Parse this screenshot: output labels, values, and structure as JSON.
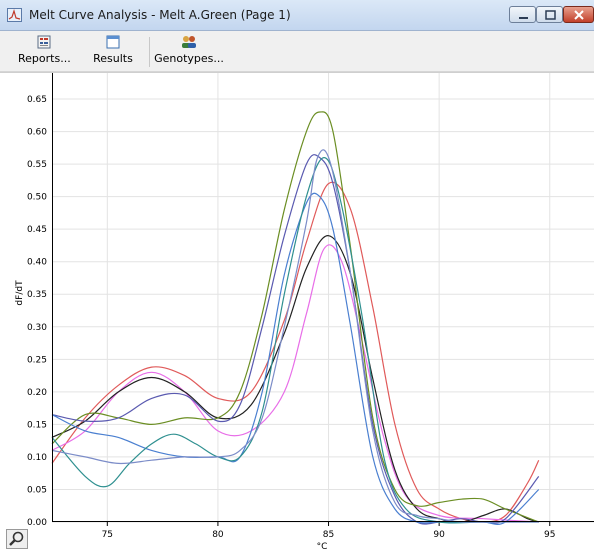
{
  "window": {
    "title": "Melt Curve Analysis - Melt A.Green (Page 1)",
    "icon": "melt-curve-app-icon",
    "controls": [
      "minimize-icon",
      "maximize-icon",
      "close-icon"
    ]
  },
  "toolbar": {
    "reports_label": "Reports...",
    "results_label": "Results",
    "genotypes_label": "Genotypes..."
  },
  "chart_data": {
    "type": "line",
    "title": "",
    "xlabel": "°C",
    "ylabel": "dF/dT",
    "xlim": [
      72.5,
      97
    ],
    "ylim": [
      0,
      0.69
    ],
    "x_ticks": [
      75,
      80,
      85,
      90,
      95
    ],
    "x_tick_labels": [
      "75",
      "80",
      "85",
      "90",
      "95"
    ],
    "y_ticks": [
      0,
      0.05,
      0.1,
      0.15,
      0.2,
      0.25,
      0.3,
      0.35,
      0.4,
      0.45,
      0.5,
      0.55,
      0.6,
      0.65
    ],
    "y_tick_labels": [
      "0.00",
      "0.05",
      "0.10",
      "0.15",
      "0.20",
      "0.25",
      "0.30",
      "0.35",
      "0.40",
      "0.45",
      "0.50",
      "0.55",
      "0.60",
      "0.65"
    ],
    "grid": true,
    "series": [
      {
        "color": "#e05a5a",
        "x": [
          72.5,
          74,
          75.5,
          77,
          78.5,
          80,
          81.5,
          83,
          84,
          85,
          86,
          87,
          88,
          89,
          90,
          91,
          92,
          93,
          94,
          94.5
        ],
        "y": [
          0.09,
          0.16,
          0.21,
          0.238,
          0.225,
          0.19,
          0.2,
          0.31,
          0.43,
          0.52,
          0.48,
          0.33,
          0.15,
          0.05,
          0.02,
          0.005,
          0.0,
          0.01,
          0.06,
          0.095
        ]
      },
      {
        "color": "#e86ee8",
        "x": [
          72.5,
          74,
          75.5,
          77,
          78.5,
          80,
          81.5,
          83,
          84,
          84.8,
          85.6,
          86.5,
          87.5,
          88.5,
          90,
          92,
          94.5
        ],
        "y": [
          0.11,
          0.14,
          0.2,
          0.23,
          0.2,
          0.14,
          0.14,
          0.2,
          0.32,
          0.42,
          0.4,
          0.28,
          0.13,
          0.04,
          0.01,
          0.005,
          0.0
        ]
      },
      {
        "color": "#222222",
        "x": [
          72.5,
          74,
          75.5,
          77,
          78.5,
          80,
          81.5,
          83,
          84,
          85,
          86,
          87,
          88,
          89,
          90,
          91,
          92,
          93,
          94,
          94.5
        ],
        "y": [
          0.13,
          0.155,
          0.2,
          0.222,
          0.2,
          0.16,
          0.18,
          0.29,
          0.39,
          0.44,
          0.38,
          0.22,
          0.08,
          0.02,
          0.005,
          0.0,
          0.01,
          0.02,
          0.005,
          0.0
        ]
      },
      {
        "color": "#6b8e23",
        "x": [
          72.5,
          74,
          75.5,
          77,
          78.5,
          80,
          81,
          82,
          83,
          84,
          84.6,
          85.2,
          86,
          87,
          88,
          89,
          90,
          91,
          92,
          93,
          94.5
        ],
        "y": [
          0.12,
          0.165,
          0.16,
          0.15,
          0.16,
          0.16,
          0.2,
          0.32,
          0.48,
          0.6,
          0.63,
          0.6,
          0.42,
          0.16,
          0.05,
          0.025,
          0.03,
          0.035,
          0.035,
          0.02,
          0.0
        ]
      },
      {
        "color": "#5a5ab0",
        "x": [
          72.5,
          74,
          75.5,
          77,
          78.5,
          80,
          81,
          82,
          83,
          84,
          84.6,
          85.2,
          86,
          87,
          88,
          89,
          90,
          91,
          92,
          93,
          94.5
        ],
        "y": [
          0.165,
          0.155,
          0.16,
          0.19,
          0.195,
          0.155,
          0.18,
          0.3,
          0.44,
          0.55,
          0.56,
          0.52,
          0.38,
          0.15,
          0.04,
          0.0,
          0.0,
          0.005,
          0.0,
          0.005,
          0.07
        ]
      },
      {
        "color": "#4a7fd0",
        "x": [
          72.5,
          74,
          75.5,
          77,
          78.5,
          80,
          81,
          82,
          83,
          84,
          84.6,
          85.2,
          86,
          87,
          88,
          89,
          90,
          91,
          92,
          93,
          94.5
        ],
        "y": [
          0.165,
          0.14,
          0.13,
          0.11,
          0.1,
          0.1,
          0.1,
          0.2,
          0.38,
          0.49,
          0.5,
          0.45,
          0.3,
          0.1,
          0.02,
          0.0,
          0.0,
          0.0,
          0.0,
          0.0,
          0.05
        ]
      },
      {
        "color": "#2f9090",
        "x": [
          72.5,
          74,
          75,
          76,
          77,
          78,
          79,
          80,
          81,
          82,
          83,
          84,
          84.8,
          85.5,
          86.5,
          87.5,
          88.5,
          90,
          92,
          94.5
        ],
        "y": [
          0.13,
          0.07,
          0.055,
          0.09,
          0.12,
          0.135,
          0.12,
          0.1,
          0.1,
          0.17,
          0.35,
          0.5,
          0.56,
          0.5,
          0.32,
          0.1,
          0.02,
          0.0,
          0.0,
          0.0
        ]
      },
      {
        "color": "#7b8cc8",
        "x": [
          72.5,
          74,
          75.5,
          77,
          78.5,
          80,
          81,
          82,
          83,
          84,
          84.5,
          85.1,
          86,
          87,
          88,
          89,
          90,
          91,
          92,
          93,
          94.5
        ],
        "y": [
          0.11,
          0.1,
          0.09,
          0.095,
          0.1,
          0.1,
          0.11,
          0.16,
          0.3,
          0.46,
          0.56,
          0.55,
          0.38,
          0.14,
          0.03,
          0.01,
          0.005,
          0.0,
          0.0,
          0.0,
          0.0
        ]
      }
    ]
  }
}
